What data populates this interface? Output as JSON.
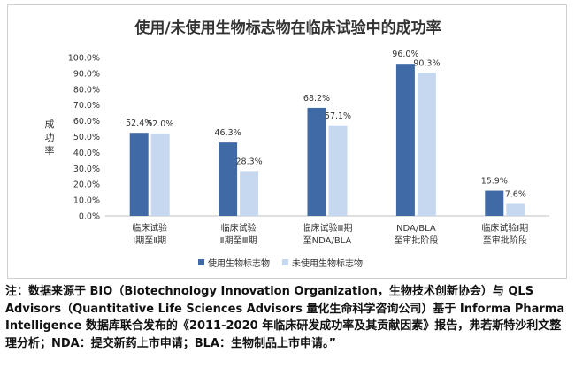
{
  "chart_data": {
    "type": "bar",
    "title": "使用/未使用生物标志物在临床试验中的成功率",
    "ylabel": "成功率",
    "xlabel": "",
    "ylim": [
      0,
      100
    ],
    "yticks": [
      "0.0%",
      "10.0%",
      "20.0%",
      "30.0%",
      "40.0%",
      "50.0%",
      "60.0%",
      "70.0%",
      "80.0%",
      "90.0%",
      "100.0%"
    ],
    "categories": [
      [
        "临床试验",
        "Ⅰ期至Ⅱ期"
      ],
      [
        "临床试验",
        "Ⅱ期至Ⅲ期"
      ],
      [
        "临床试验Ⅲ期",
        "至NDA/BLA"
      ],
      [
        "NDA/BLA",
        "至审批阶段"
      ],
      [
        "临床试验Ⅰ期",
        "至审批阶段"
      ]
    ],
    "series": [
      {
        "name": "使用生物标志物",
        "color": "#3f6aa6",
        "values": [
          52.4,
          46.3,
          68.2,
          96.0,
          15.9
        ],
        "labels": [
          "52.4%",
          "46.3%",
          "68.2%",
          "96.0%",
          "15.9%"
        ]
      },
      {
        "name": "未使用生物标志物",
        "color": "#c5d8ef",
        "values": [
          52.0,
          28.3,
          57.1,
          90.3,
          7.6
        ],
        "labels": [
          "52.0%",
          "28.3%",
          "57.1%",
          "90.3%",
          "7.6%"
        ]
      }
    ],
    "grid": false,
    "legend": "bottom"
  },
  "note": "注：数据来源于 BIO（Biotechnology Innovation Organization，生物技术创新协会）与 QLS Advisors（Quantitative Life Sciences Advisors 量化生命科学咨询公司）基于 Informa Pharma Intelligence 数据库联合发布的《2011-2020 年临床研发成功率及其贡献因素》报告，弗若斯特沙利文整理分析；NDA：提交新药上市申请；BLA：生物制品上市申请。”"
}
